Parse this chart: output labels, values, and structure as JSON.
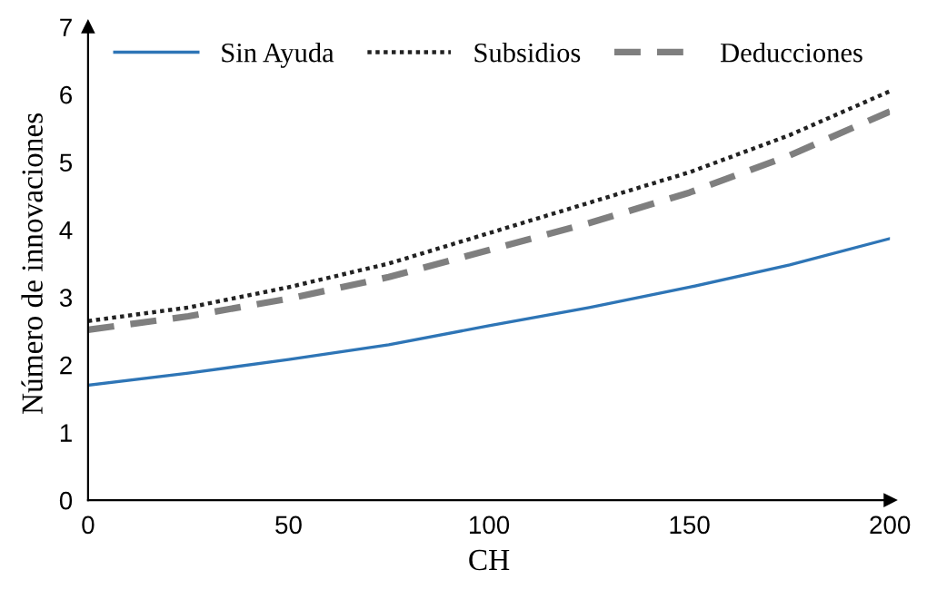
{
  "chart_data": {
    "type": "line",
    "xlabel": "CH",
    "ylabel": "Número de innovaciones",
    "x": [
      0,
      25,
      50,
      75,
      100,
      125,
      150,
      175,
      200
    ],
    "series": [
      {
        "name": "Sin Ayuda",
        "color": "#2e75b6",
        "line_style": "solid",
        "values": [
          1.7,
          1.88,
          2.08,
          2.3,
          2.58,
          2.85,
          3.15,
          3.48,
          3.87
        ]
      },
      {
        "name": "Subsidios",
        "color": "#222222",
        "line_style": "dotted",
        "values": [
          2.65,
          2.85,
          3.15,
          3.5,
          3.95,
          4.4,
          4.85,
          5.4,
          6.05
        ]
      },
      {
        "name": "Deducciones",
        "color": "#7f7f7f",
        "line_style": "dashed",
        "values": [
          2.52,
          2.72,
          2.98,
          3.3,
          3.7,
          4.1,
          4.55,
          5.1,
          5.75
        ]
      }
    ],
    "xlim": [
      0,
      200
    ],
    "xticks": [
      0,
      50,
      100,
      150,
      200
    ],
    "ylim": [
      0,
      7
    ],
    "yticks": [
      0,
      1,
      2,
      3,
      4,
      5,
      6,
      7
    ],
    "grid": false,
    "legend": "top",
    "marker": "none"
  }
}
